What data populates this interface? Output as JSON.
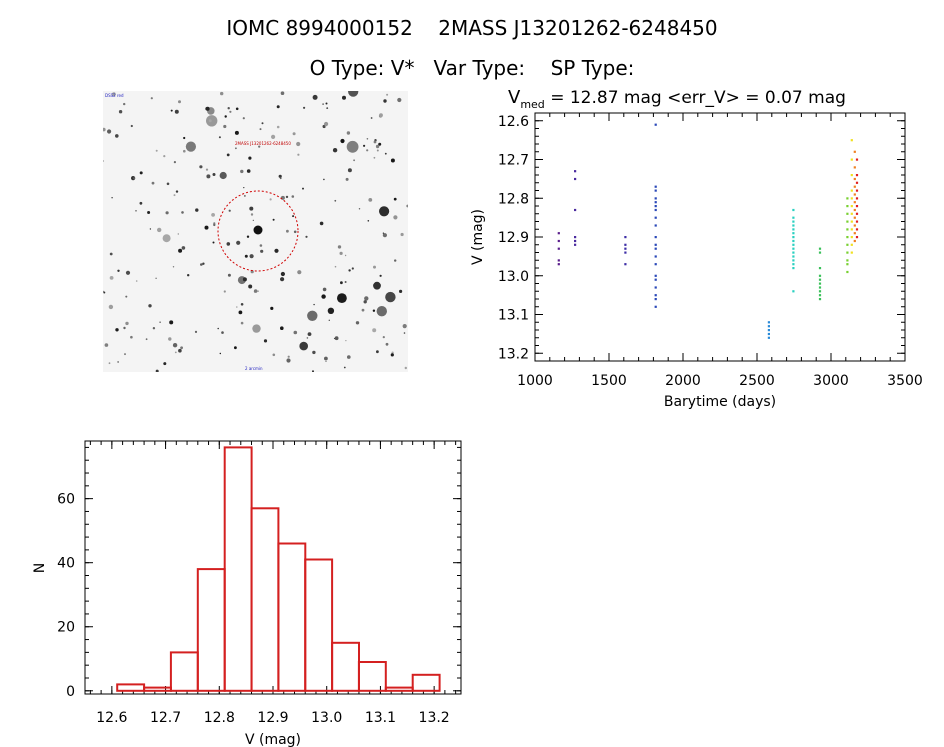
{
  "header": {
    "title_line1": "IOMC 8994000152    2MASS J13201262-6248450",
    "title_line2": "O Type: V*   Var Type:    SP Type:"
  },
  "chart_data": [
    {
      "type": "scatter",
      "title_main": "V",
      "title_sub": "med",
      "title_rest": " = 12.87 mag <err_V> = 0.07 mag",
      "xlabel": "Barytime (days)",
      "ylabel": "V (mag)",
      "xlim": [
        1000,
        3500
      ],
      "ylim": [
        13.22,
        12.58
      ],
      "y_inverted": true,
      "x_ticks": [
        1000,
        1500,
        2000,
        2500,
        3000,
        3500
      ],
      "y_ticks": [
        "12.6",
        "12.7",
        "12.8",
        "12.9",
        "13.0",
        "13.1",
        "13.2"
      ],
      "color_by_time": true,
      "groups": [
        {
          "x": 1160,
          "y": [
            12.89,
            12.91,
            12.93,
            12.96,
            12.97
          ],
          "color": "#5a1e8c"
        },
        {
          "x": 1270,
          "y": [
            12.73,
            12.75,
            12.83,
            12.9,
            12.91,
            12.92
          ],
          "color": "#4a2a9e"
        },
        {
          "x": 1610,
          "y": [
            12.9,
            12.92,
            12.93,
            12.94,
            12.97
          ],
          "color": "#3d2ea6"
        },
        {
          "x": 1815,
          "y": [
            12.61,
            12.77,
            12.78,
            12.8,
            12.81,
            12.82,
            12.83,
            12.85,
            12.87,
            12.9,
            12.92,
            12.93,
            12.95,
            12.97,
            13.0,
            13.01,
            13.03,
            13.05,
            13.06,
            13.08
          ],
          "color": "#2a48b8"
        },
        {
          "x": 2580,
          "y": [
            13.12,
            13.13,
            13.14,
            13.15,
            13.16
          ],
          "color": "#2a8ad8"
        },
        {
          "x": 2745,
          "y": [
            12.83,
            12.85,
            12.86,
            12.87,
            12.88,
            12.89,
            12.9,
            12.91,
            12.92,
            12.93,
            12.94,
            12.95,
            12.96,
            12.97,
            12.98,
            13.04
          ],
          "color": "#2ad0c0"
        },
        {
          "x": 2925,
          "y": [
            12.93,
            12.94,
            12.98,
            13.0,
            13.01,
            13.02,
            13.03,
            13.04,
            13.05,
            13.06
          ],
          "color": "#3ac05a"
        },
        {
          "x": 3110,
          "y": [
            12.8,
            12.82,
            12.84,
            12.86,
            12.88,
            12.9,
            12.92,
            12.94,
            12.96,
            12.97,
            12.99
          ],
          "color": "#78d030"
        },
        {
          "x": 3140,
          "y": [
            12.65,
            12.7,
            12.74,
            12.78,
            12.8,
            12.82,
            12.84,
            12.86,
            12.88,
            12.9,
            12.92,
            12.94
          ],
          "color": "#f0e020"
        },
        {
          "x": 3160,
          "y": [
            12.68,
            12.72,
            12.75,
            12.77,
            12.79,
            12.81,
            12.83,
            12.85,
            12.87,
            12.89,
            12.91
          ],
          "color": "#f08020"
        },
        {
          "x": 3175,
          "y": [
            12.7,
            12.74,
            12.76,
            12.78,
            12.8,
            12.82,
            12.84,
            12.86,
            12.88,
            12.9
          ],
          "color": "#e02020"
        }
      ]
    },
    {
      "type": "bar",
      "subtype": "histogram",
      "xlabel": "V (mag)",
      "ylabel": "N",
      "xlim": [
        12.55,
        13.25
      ],
      "ylim": [
        -1,
        78
      ],
      "x_ticks": [
        "12.6",
        "12.7",
        "12.8",
        "12.9",
        "13.0",
        "13.1",
        "13.2"
      ],
      "y_ticks": [
        "0",
        "20",
        "40",
        "60"
      ],
      "bin_width": 0.05,
      "bin_edges_start": 12.61,
      "values": [
        2,
        1,
        12,
        38,
        76,
        57,
        46,
        41,
        15,
        9,
        1,
        5
      ],
      "color": "#d42020"
    }
  ],
  "sky_image": {
    "label_top_left": "DSS2 red",
    "label_target": "2MASS J13201262-6248450",
    "label_bottom": "2 arcmin"
  }
}
